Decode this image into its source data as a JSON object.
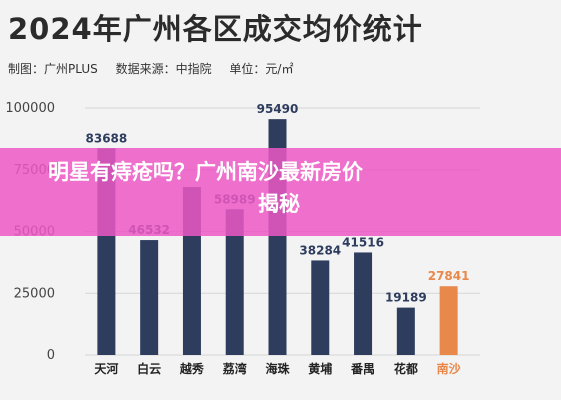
{
  "header": {
    "title": "2024年广州各区成交均价统计",
    "source_made": "制图：广州PLUS",
    "source_data": "数据来源：中指院",
    "unit": "单位：元/㎡"
  },
  "overlay": {
    "line1": "明星有痔疮吗？广州南沙最新房价",
    "line2": "揭秘"
  },
  "colors": {
    "bar": "#2e3c5e",
    "highlight": "#e8884a",
    "label": "#2e3c5e",
    "highlight_label": "#e8884a"
  },
  "chart_data": {
    "type": "bar",
    "title": "2024年广州各区成交均价统计",
    "unit": "元/㎡",
    "categories": [
      "天河",
      "白云",
      "越秀",
      "荔湾",
      "海珠",
      "黄埔",
      "番禺",
      "花都",
      "南沙"
    ],
    "values": [
      83688,
      46532,
      68000,
      58989,
      95490,
      38284,
      41516,
      19189,
      27841
    ],
    "data_labels": [
      "83688",
      "46532",
      "",
      "58989",
      "95490",
      "38284",
      "41516",
      "19189",
      "27841"
    ],
    "highlight": [
      "南沙"
    ],
    "ylim": [
      0,
      100000
    ],
    "yticks": [
      0,
      25000,
      50000,
      75000,
      100000
    ],
    "ytick_labels": [
      "0",
      "25000",
      "50000",
      "75000",
      "100000"
    ],
    "grid": true
  }
}
